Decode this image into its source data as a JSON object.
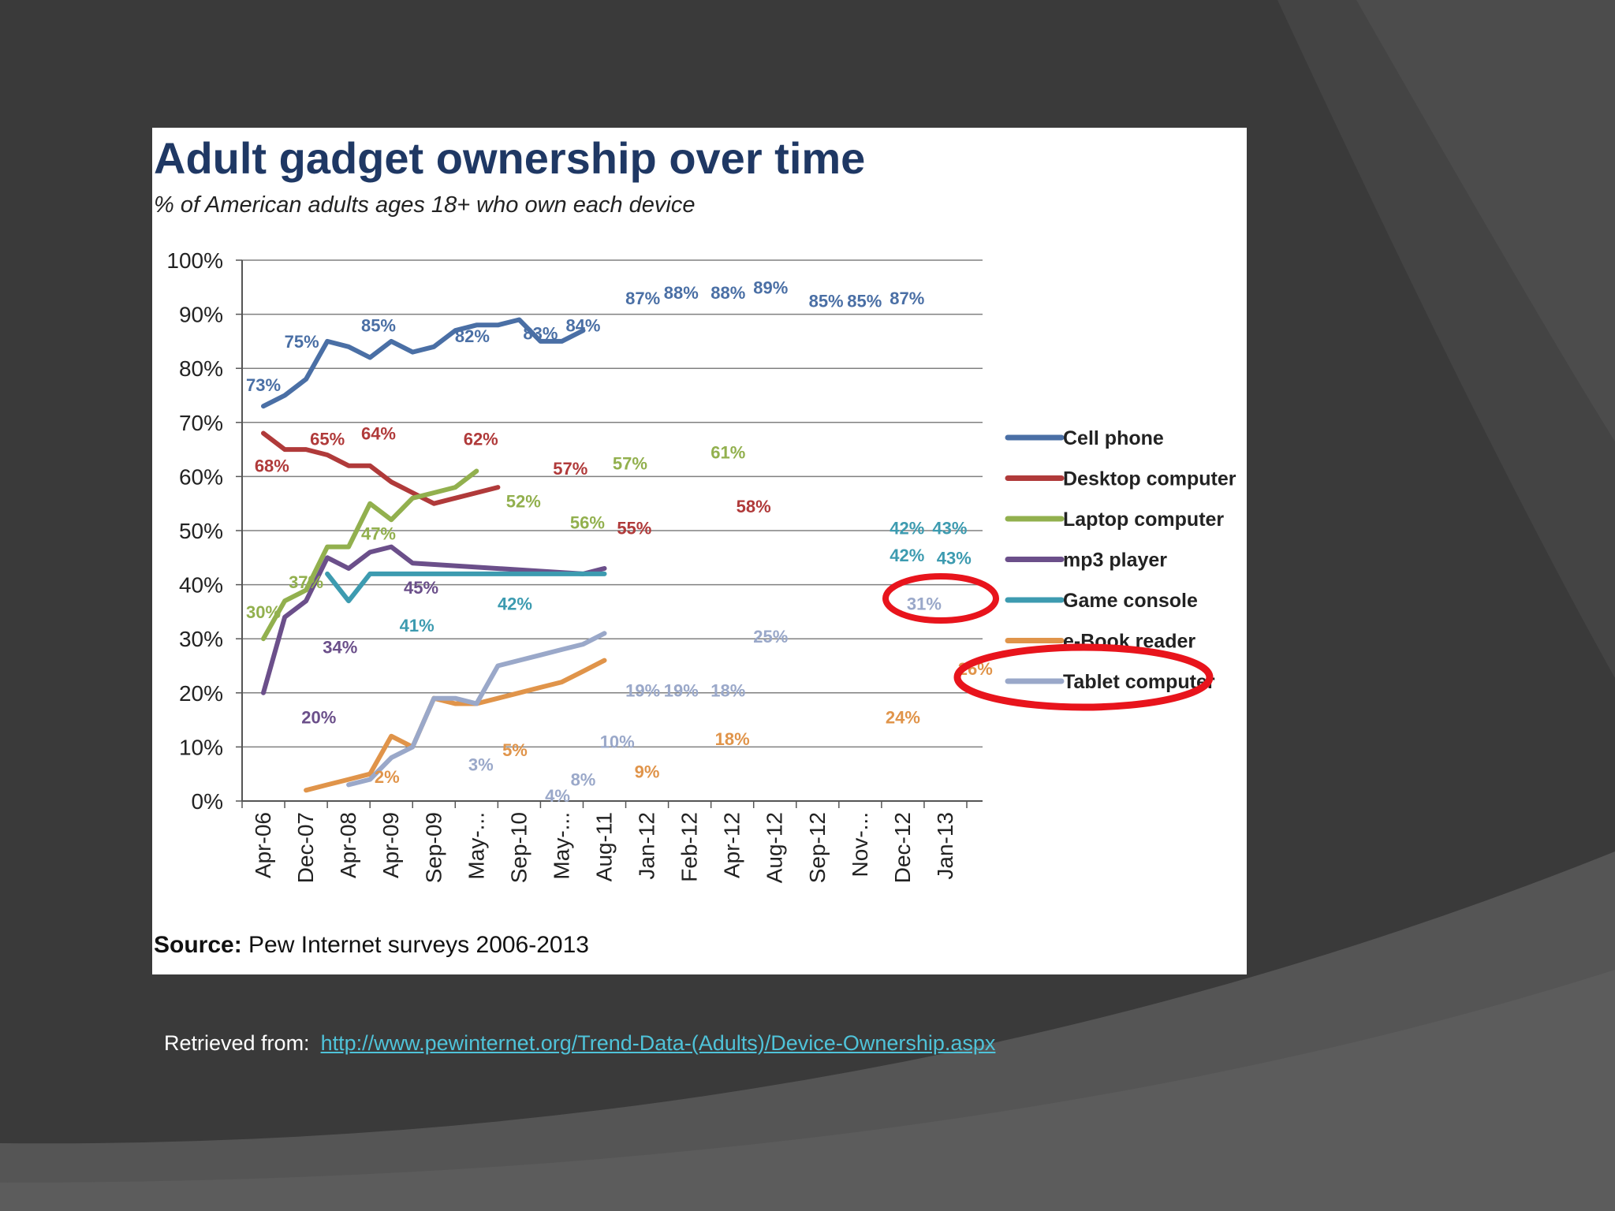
{
  "slide": {
    "retrieved_label": "Retrieved from:",
    "retrieved_url": "http://www.pewinternet.org/Trend-Data-(Adults)/Device-Ownership.aspx",
    "background_color": "#3a3a3a",
    "link_color": "#4fc3d9",
    "highlight_color": "#e8141c"
  },
  "chart_data": {
    "type": "line",
    "title": "Adult gadget ownership over time",
    "subtitle": "% of American adults ages 18+ who own each device",
    "source_label": "Source:",
    "source_text": "Pew Internet surveys 2006-2013",
    "ylim": [
      0,
      100
    ],
    "y_ticks": [
      "0%",
      "10%",
      "20%",
      "30%",
      "40%",
      "50%",
      "60%",
      "70%",
      "80%",
      "90%",
      "100%"
    ],
    "grid": true,
    "legend_position": "right",
    "categories": [
      "Apr-06",
      "Dec-07",
      "Apr-08",
      "Apr-09",
      "Sep-09",
      "May-...",
      "Sep-10",
      "May-...",
      "Aug-11",
      "Jan-12",
      "Feb-12",
      "Apr-12",
      "Aug-12",
      "Sep-12",
      "Nov-...",
      "Dec-12",
      "Jan-13"
    ],
    "series": [
      {
        "name": "Cell phone",
        "color": "#4a6fa5",
        "points": [
          [
            0.5,
            73
          ],
          [
            1,
            75
          ],
          [
            1.5,
            78
          ],
          [
            2,
            85
          ],
          [
            2.5,
            84
          ],
          [
            3,
            82
          ],
          [
            3.5,
            85
          ],
          [
            4,
            83
          ],
          [
            4.5,
            84
          ],
          [
            5,
            87
          ],
          [
            5.5,
            88
          ],
          [
            6,
            88
          ],
          [
            6.5,
            89
          ],
          [
            7,
            85
          ],
          [
            7.5,
            85
          ],
          [
            8,
            87
          ]
        ],
        "labels": [
          {
            "text": "73%",
            "x": 0.5,
            "y": 77
          },
          {
            "text": "75%",
            "x": 1.4,
            "y": 85
          },
          {
            "text": "85%",
            "x": 3.2,
            "y": 88
          },
          {
            "text": "82%",
            "x": 5.4,
            "y": 86
          },
          {
            "text": "83%",
            "x": 7.0,
            "y": 86.5
          },
          {
            "text": "84%",
            "x": 8.0,
            "y": 88
          },
          {
            "text": "87%",
            "x": 9.4,
            "y": 93
          },
          {
            "text": "88%",
            "x": 10.3,
            "y": 94
          },
          {
            "text": "88%",
            "x": 11.4,
            "y": 94
          },
          {
            "text": "89%",
            "x": 12.4,
            "y": 95
          },
          {
            "text": "85%",
            "x": 13.7,
            "y": 92.5
          },
          {
            "text": "85%",
            "x": 14.6,
            "y": 92.5
          },
          {
            "text": "87%",
            "x": 15.6,
            "y": 93
          }
        ]
      },
      {
        "name": "Desktop computer",
        "color": "#b03a3a",
        "points": [
          [
            0.5,
            68
          ],
          [
            1,
            65
          ],
          [
            1.5,
            65
          ],
          [
            2,
            64
          ],
          [
            2.5,
            62
          ],
          [
            3,
            62
          ],
          [
            3.5,
            59
          ],
          [
            4,
            57
          ],
          [
            4.5,
            55
          ],
          [
            5,
            56
          ],
          [
            5.5,
            57
          ],
          [
            6,
            58
          ]
        ],
        "labels": [
          {
            "text": "68%",
            "x": 0.7,
            "y": 62
          },
          {
            "text": "65%",
            "x": 2.0,
            "y": 67
          },
          {
            "text": "64%",
            "x": 3.2,
            "y": 68
          },
          {
            "text": "62%",
            "x": 5.6,
            "y": 67
          },
          {
            "text": "57%",
            "x": 7.7,
            "y": 61.5
          },
          {
            "text": "55%",
            "x": 9.2,
            "y": 50.5
          },
          {
            "text": "58%",
            "x": 12.0,
            "y": 54.5
          }
        ]
      },
      {
        "name": "Laptop computer",
        "color": "#92b04e",
        "points": [
          [
            0.5,
            30
          ],
          [
            1,
            37
          ],
          [
            1.5,
            39
          ],
          [
            2,
            47
          ],
          [
            2.5,
            47
          ],
          [
            3,
            55
          ],
          [
            3.5,
            52
          ],
          [
            4,
            56
          ],
          [
            4.5,
            57
          ],
          [
            5,
            58
          ],
          [
            5.5,
            61
          ]
        ],
        "labels": [
          {
            "text": "30%",
            "x": 0.5,
            "y": 35
          },
          {
            "text": "37%",
            "x": 1.5,
            "y": 40.5
          },
          {
            "text": "47%",
            "x": 3.2,
            "y": 49.5
          },
          {
            "text": "52%",
            "x": 6.6,
            "y": 55.5
          },
          {
            "text": "56%",
            "x": 8.1,
            "y": 51.5
          },
          {
            "text": "57%",
            "x": 9.1,
            "y": 62.5
          },
          {
            "text": "61%",
            "x": 11.4,
            "y": 64.5
          }
        ]
      },
      {
        "name": "mp3 player",
        "color": "#6b4f8a",
        "points": [
          [
            0.5,
            20
          ],
          [
            1,
            34
          ],
          [
            1.5,
            37
          ],
          [
            2,
            45
          ],
          [
            2.5,
            43
          ],
          [
            3,
            46
          ],
          [
            3.5,
            47
          ],
          [
            4,
            44
          ],
          [
            8,
            42
          ],
          [
            8.5,
            43
          ]
        ],
        "labels": [
          {
            "text": "20%",
            "x": 1.8,
            "y": 15.5
          },
          {
            "text": "34%",
            "x": 2.3,
            "y": 28.5
          },
          {
            "text": "45%",
            "x": 4.2,
            "y": 39.5
          }
        ]
      },
      {
        "name": "Game console",
        "color": "#3d9bb0",
        "points": [
          [
            2,
            42
          ],
          [
            2.5,
            37
          ],
          [
            3,
            42
          ],
          [
            8.5,
            42
          ]
        ],
        "labels": [
          {
            "text": "41%",
            "x": 4.1,
            "y": 32.5
          },
          {
            "text": "42%",
            "x": 6.4,
            "y": 36.5
          },
          {
            "text": "42%",
            "x": 15.6,
            "y": 50.5
          },
          {
            "text": "42%",
            "x": 15.6,
            "y": 45.5
          },
          {
            "text": "43%",
            "x": 16.6,
            "y": 50.5
          },
          {
            "text": "43%",
            "x": 16.7,
            "y": 45
          }
        ]
      },
      {
        "name": "e-Book reader",
        "color": "#e0944a",
        "points": [
          [
            1.5,
            2
          ],
          [
            2,
            3
          ],
          [
            2.5,
            4
          ],
          [
            3,
            5
          ],
          [
            3.5,
            12
          ],
          [
            4,
            10
          ],
          [
            4.5,
            19
          ],
          [
            5,
            18
          ],
          [
            5.5,
            18
          ],
          [
            6,
            19
          ],
          [
            6.5,
            20
          ],
          [
            7,
            21
          ],
          [
            7.5,
            22
          ],
          [
            8,
            24
          ],
          [
            8.5,
            26
          ]
        ],
        "labels": [
          {
            "text": "2%",
            "x": 3.4,
            "y": 4.5
          },
          {
            "text": "5%",
            "x": 6.4,
            "y": 9.5
          },
          {
            "text": "9%",
            "x": 9.5,
            "y": 5.5
          },
          {
            "text": "18%",
            "x": 11.5,
            "y": 11.5
          },
          {
            "text": "24%",
            "x": 15.5,
            "y": 15.5
          },
          {
            "text": "26%",
            "x": 17.2,
            "y": 24.5
          }
        ]
      },
      {
        "name": "Tablet computer",
        "color": "#9aa8c9",
        "points": [
          [
            2.5,
            3
          ],
          [
            3,
            4
          ],
          [
            3.5,
            8
          ],
          [
            4,
            10
          ],
          [
            4.5,
            19
          ],
          [
            5,
            19
          ],
          [
            5.5,
            18
          ],
          [
            6,
            25
          ],
          [
            6.5,
            26
          ],
          [
            7,
            27
          ],
          [
            7.5,
            28
          ],
          [
            8,
            29
          ],
          [
            8.5,
            31
          ]
        ],
        "labels": [
          {
            "text": "3%",
            "x": 5.6,
            "y": 6.8
          },
          {
            "text": "4%",
            "x": 7.4,
            "y": 1.0
          },
          {
            "text": "8%",
            "x": 8.0,
            "y": 4.0
          },
          {
            "text": "10%",
            "x": 8.8,
            "y": 11.0
          },
          {
            "text": "19%",
            "x": 9.4,
            "y": 20.5
          },
          {
            "text": "19%",
            "x": 10.3,
            "y": 20.5
          },
          {
            "text": "18%",
            "x": 11.4,
            "y": 20.5
          },
          {
            "text": "25%",
            "x": 12.4,
            "y": 30.5
          },
          {
            "text": "31%",
            "x": 16.0,
            "y": 36.5
          }
        ]
      }
    ]
  }
}
